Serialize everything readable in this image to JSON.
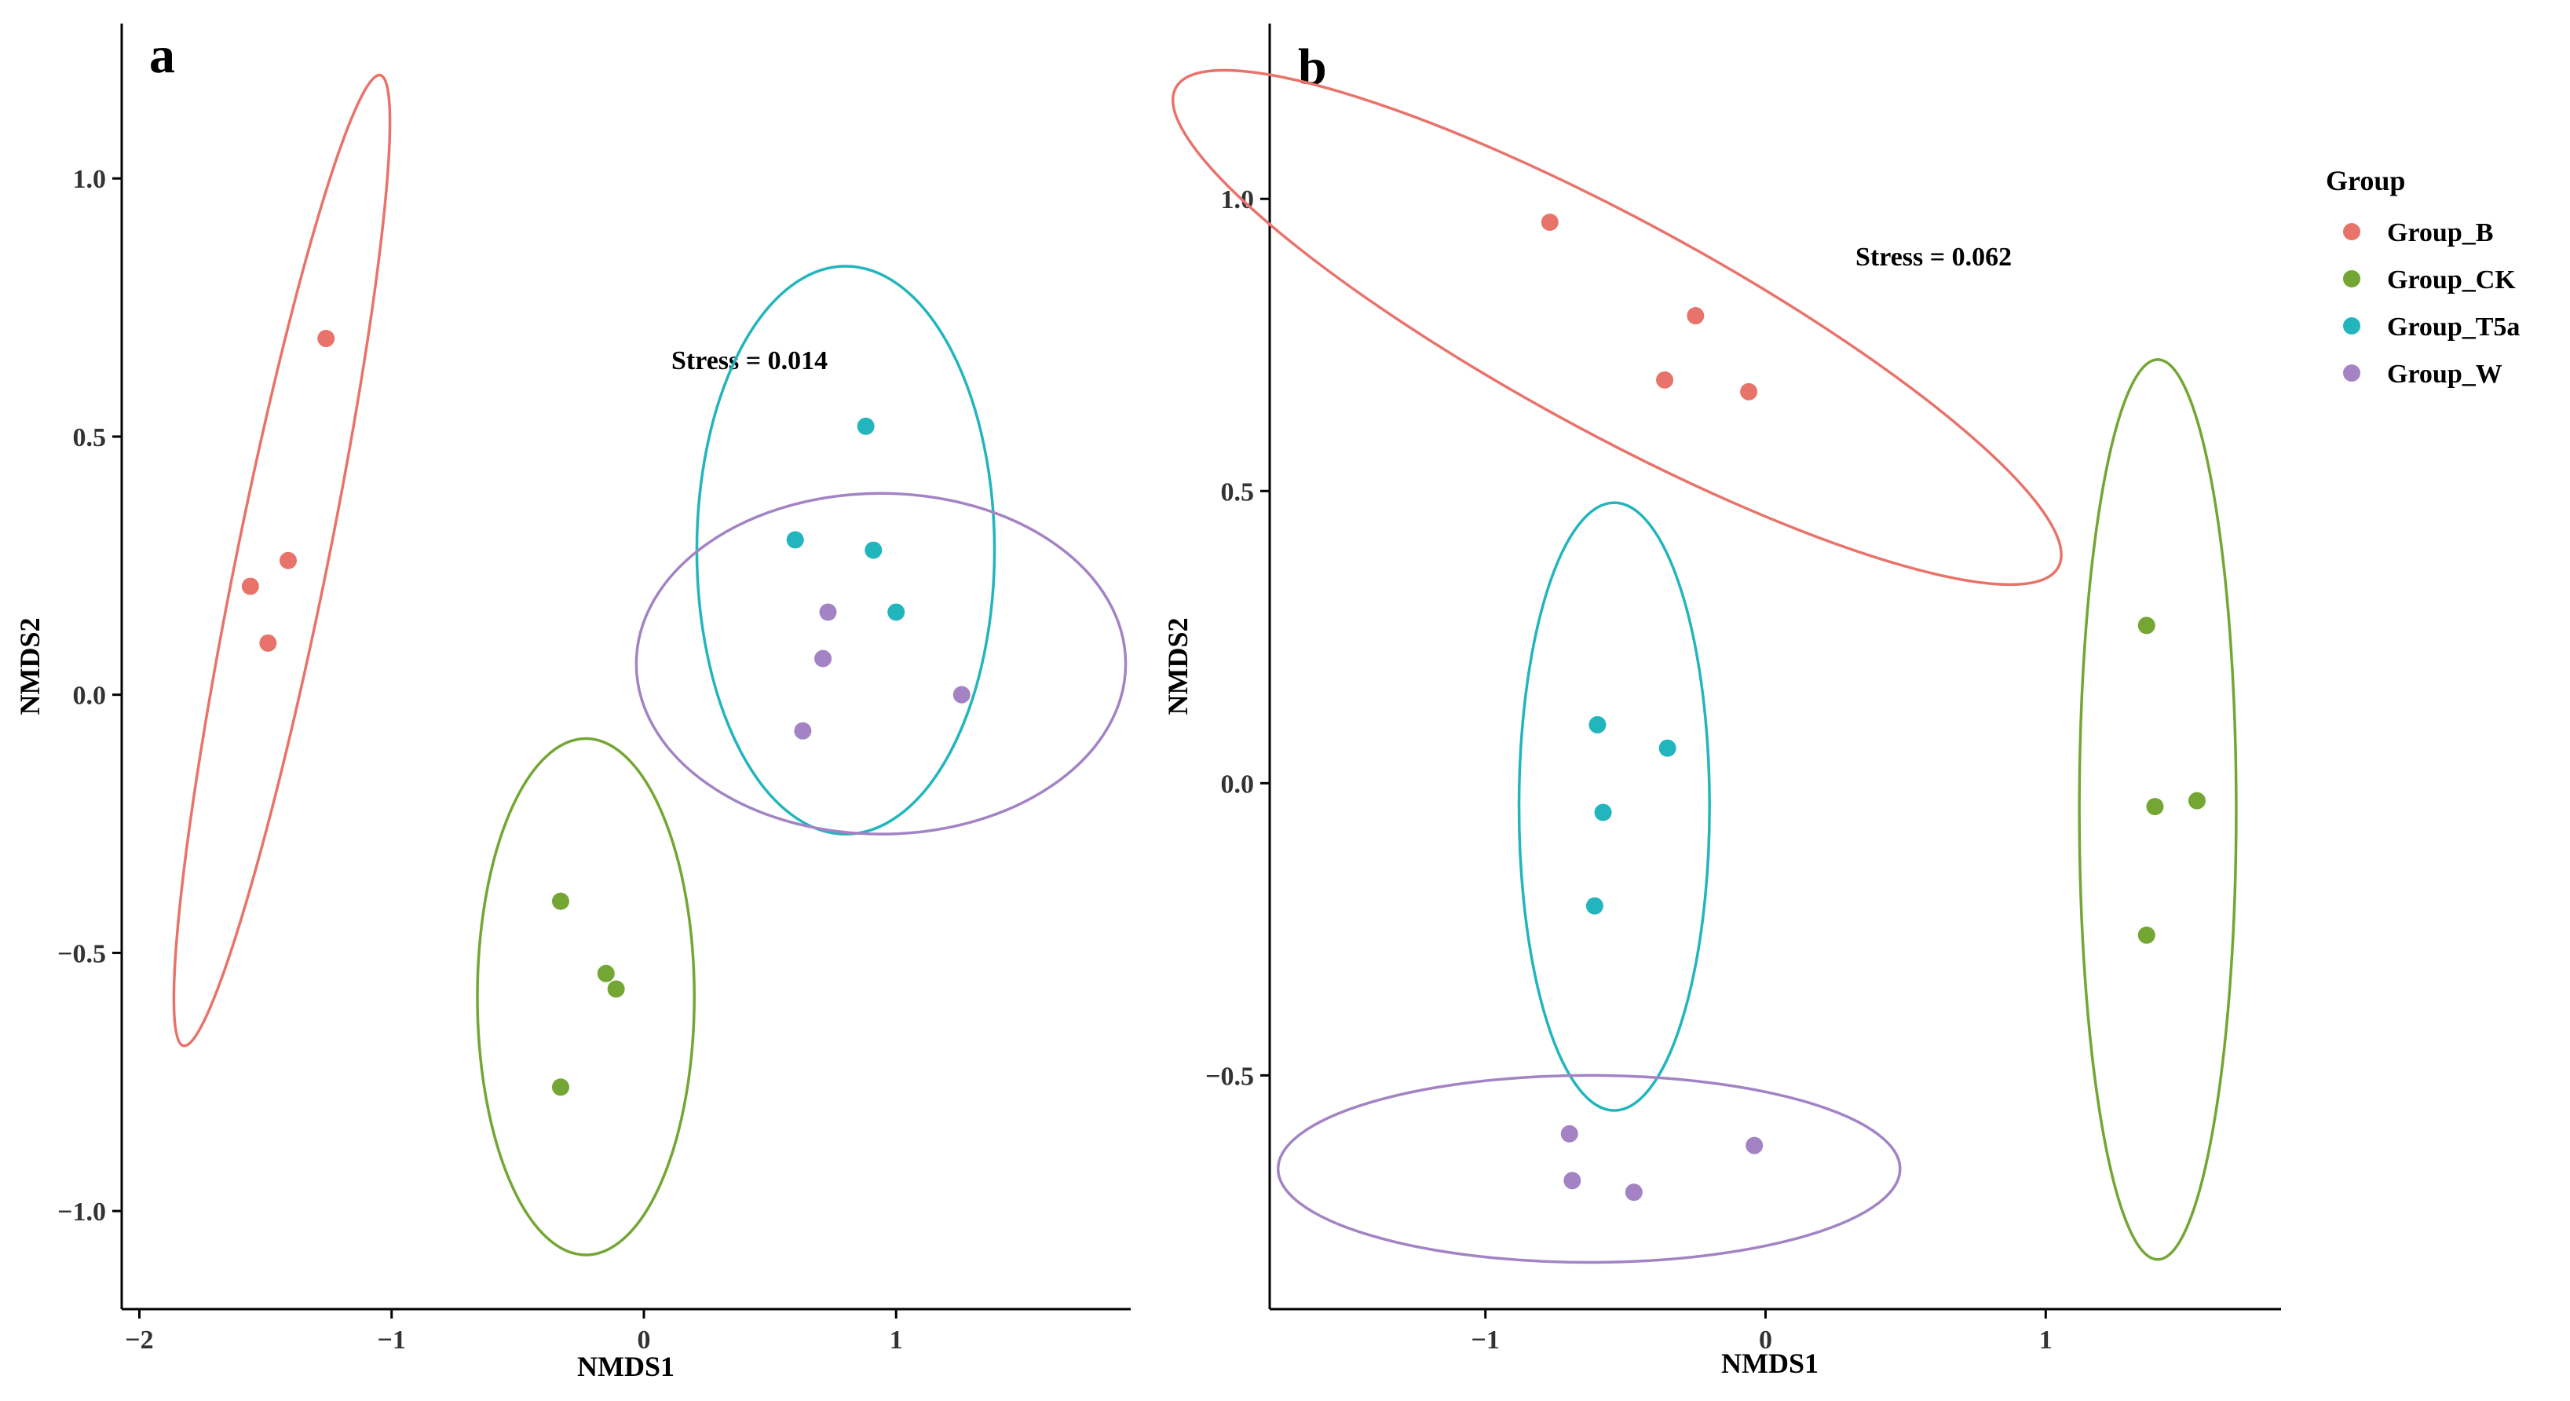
{
  "legend": {
    "title": "Group",
    "items": [
      {
        "label": "Group_B",
        "color": "#E8736B"
      },
      {
        "label": "Group_CK",
        "color": "#73A633"
      },
      {
        "label": "Group_T5a",
        "color": "#22B5BE"
      },
      {
        "label": "Group_W",
        "color": "#A383C4"
      }
    ]
  },
  "chart_data": [
    {
      "type": "scatter",
      "panel": "a",
      "annotation": "Stress = 0.014",
      "xlabel": "NMDS1",
      "ylabel": "NMDS2",
      "xlim": [
        -2.07,
        1.93
      ],
      "ylim": [
        -1.19,
        1.3
      ],
      "xticks": [
        {
          "value": -2,
          "label": "−2"
        },
        {
          "value": -1,
          "label": "−1"
        },
        {
          "value": 0,
          "label": "0"
        },
        {
          "value": 1,
          "label": "1"
        }
      ],
      "yticks": [
        {
          "value": -1,
          "label": "−1.0"
        },
        {
          "value": -0.5,
          "label": "−0.5"
        },
        {
          "value": 0,
          "label": "0.0"
        },
        {
          "value": 0.5,
          "label": "0.5"
        },
        {
          "value": 1,
          "label": "1.0"
        }
      ],
      "grid": false,
      "series": [
        {
          "name": "Group_B",
          "color": "#E8736B",
          "points": [
            [
              -1.26,
              0.69
            ],
            [
              -1.41,
              0.26
            ],
            [
              -1.56,
              0.21
            ],
            [
              -1.49,
              0.1
            ]
          ]
        },
        {
          "name": "Group_CK",
          "color": "#73A633",
          "points": [
            [
              -0.33,
              -0.4
            ],
            [
              -0.15,
              -0.54
            ],
            [
              -0.11,
              -0.57
            ],
            [
              -0.33,
              -0.76
            ]
          ]
        },
        {
          "name": "Group_T5a",
          "color": "#22B5BE",
          "points": [
            [
              0.88,
              0.52
            ],
            [
              0.6,
              0.3
            ],
            [
              0.91,
              0.28
            ],
            [
              1.0,
              0.16
            ]
          ]
        },
        {
          "name": "Group_W",
          "color": "#A383C4",
          "points": [
            [
              0.73,
              0.16
            ],
            [
              0.71,
              0.07
            ],
            [
              0.63,
              -0.07
            ],
            [
              1.26,
              0.0
            ]
          ]
        }
      ],
      "ellipses": [
        {
          "group": "Group_B",
          "color": "#E8736B",
          "cx": -1.435,
          "cy": 0.26,
          "points": [
            [
              -1.06,
              1.2
            ],
            [
              -1.84,
              -0.68
            ],
            [
              -1.83,
              -0.58
            ],
            [
              -1.04,
              1.19
            ]
          ]
        },
        {
          "group": "Group_CK",
          "color": "#73A633",
          "cx": -0.23,
          "cy": -0.585,
          "rx_data": 0.43,
          "ry_data": 0.5
        },
        {
          "group": "Group_T5a",
          "color": "#22B5BE",
          "cx": 0.8,
          "cy": 0.28,
          "rx_data": 0.59,
          "ry_data": 0.55
        },
        {
          "group": "Group_W",
          "color": "#A383C4",
          "cx": 0.94,
          "cy": 0.06,
          "rx_data": 0.97,
          "ry_data": 0.33
        }
      ]
    },
    {
      "type": "scatter",
      "panel": "b",
      "annotation": "Stress = 0.062",
      "xlabel": "NMDS1",
      "ylabel": "NMDS2",
      "xlim": [
        -1.77,
        1.84
      ],
      "ylim": [
        -0.9,
        1.3
      ],
      "xticks": [
        {
          "value": -1,
          "label": "−1"
        },
        {
          "value": 0,
          "label": "0"
        },
        {
          "value": 1,
          "label": "1"
        }
      ],
      "yticks": [
        {
          "value": -0.5,
          "label": "−0.5"
        },
        {
          "value": 0,
          "label": "0.0"
        },
        {
          "value": 0.5,
          "label": "0.5"
        },
        {
          "value": 1,
          "label": "1.0"
        }
      ],
      "grid": false,
      "series": [
        {
          "name": "Group_B",
          "color": "#E8736B",
          "points": [
            [
              -0.77,
              0.96
            ],
            [
              -0.25,
              0.8
            ],
            [
              -0.36,
              0.69
            ],
            [
              -0.06,
              0.67
            ]
          ]
        },
        {
          "name": "Group_CK",
          "color": "#73A633",
          "points": [
            [
              1.36,
              0.27
            ],
            [
              1.54,
              -0.03
            ],
            [
              1.39,
              -0.04
            ],
            [
              1.36,
              -0.26
            ]
          ]
        },
        {
          "name": "Group_T5a",
          "color": "#22B5BE",
          "points": [
            [
              -0.6,
              0.1
            ],
            [
              -0.35,
              0.06
            ],
            [
              -0.58,
              -0.05
            ],
            [
              -0.61,
              -0.21
            ]
          ]
        },
        {
          "name": "Group_W",
          "color": "#A383C4",
          "points": [
            [
              -0.7,
              -0.6
            ],
            [
              -0.69,
              -0.68
            ],
            [
              -0.47,
              -0.7
            ],
            [
              -0.04,
              -0.62
            ]
          ]
        }
      ],
      "ellipses": [
        {
          "group": "Group_B",
          "color": "#E8736B",
          "cx": -0.53,
          "cy": 0.78,
          "rx_data": 1.35,
          "ry_data": 0.2,
          "angle_deg": 28.5
        },
        {
          "group": "Group_CK",
          "color": "#73A633",
          "cx": 1.4,
          "cy": -0.045,
          "rx_data": 0.28,
          "ry_data": 0.77
        },
        {
          "group": "Group_T5a",
          "color": "#22B5BE",
          "cx": -0.54,
          "cy": -0.04,
          "rx_data": 0.34,
          "ry_data": 0.52
        },
        {
          "group": "Group_W",
          "color": "#A383C4",
          "cx": -0.63,
          "cy": -0.66,
          "rx_data": 1.11,
          "ry_data": 0.16
        }
      ]
    }
  ]
}
